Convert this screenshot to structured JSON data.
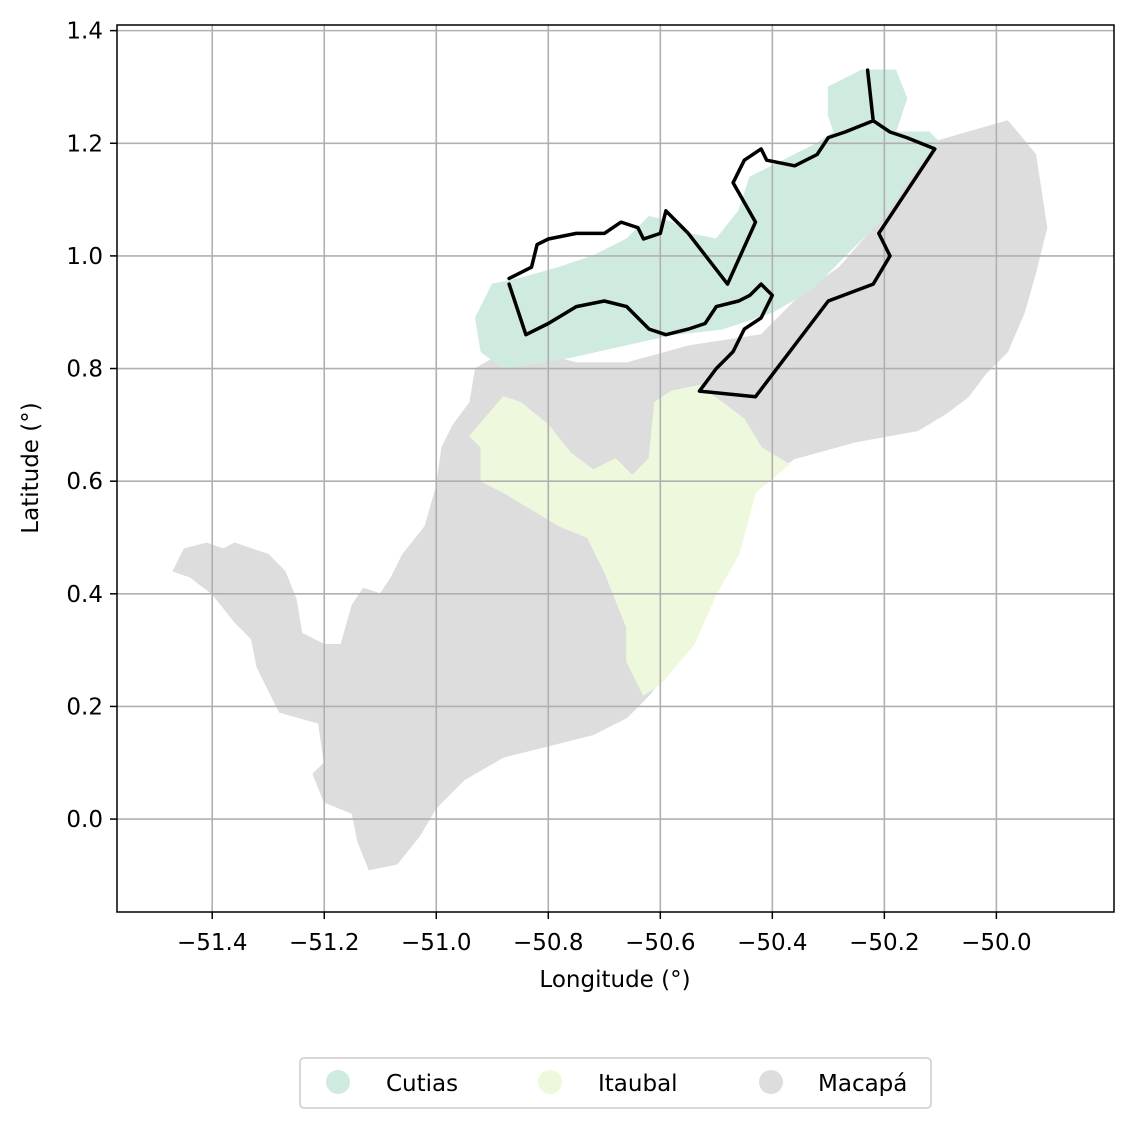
{
  "chart_data": {
    "type": "map",
    "title": "",
    "xlabel": "Longitude (°)",
    "ylabel": "Latitude (°)",
    "xlim": [
      -51.57,
      -49.79
    ],
    "ylim": [
      -0.165,
      1.41
    ],
    "xticks": [
      -51.4,
      -51.2,
      -51.0,
      -50.8,
      -50.6,
      -50.4,
      -50.2,
      -50.0
    ],
    "xtick_labels": [
      "−51.4",
      "−51.2",
      "−51.0",
      "−50.8",
      "−50.6",
      "−50.4",
      "−50.2",
      "−50.0"
    ],
    "yticks": [
      0.0,
      0.2,
      0.4,
      0.6,
      0.8,
      1.0,
      1.2,
      1.4
    ],
    "ytick_labels": [
      "0.0",
      "0.2",
      "0.4",
      "0.6",
      "0.8",
      "1.0",
      "1.2",
      "1.4"
    ],
    "grid": true,
    "legend_position": "bottom-center",
    "regions": [
      {
        "name": "Macapá",
        "color": "#dddddd",
        "polygon": [
          [
            -51.12,
            -0.09
          ],
          [
            -51.14,
            -0.04
          ],
          [
            -51.15,
            0.01
          ],
          [
            -51.2,
            0.03
          ],
          [
            -51.22,
            0.08
          ],
          [
            -51.2,
            0.1
          ],
          [
            -51.21,
            0.17
          ],
          [
            -51.28,
            0.19
          ],
          [
            -51.32,
            0.27
          ],
          [
            -51.33,
            0.32
          ],
          [
            -51.36,
            0.35
          ],
          [
            -51.4,
            0.4
          ],
          [
            -51.44,
            0.43
          ],
          [
            -51.47,
            0.44
          ],
          [
            -51.45,
            0.48
          ],
          [
            -51.41,
            0.49
          ],
          [
            -51.38,
            0.48
          ],
          [
            -51.36,
            0.49
          ],
          [
            -51.3,
            0.47
          ],
          [
            -51.27,
            0.44
          ],
          [
            -51.25,
            0.39
          ],
          [
            -51.24,
            0.33
          ],
          [
            -51.2,
            0.31
          ],
          [
            -51.17,
            0.31
          ],
          [
            -51.15,
            0.38
          ],
          [
            -51.13,
            0.41
          ],
          [
            -51.1,
            0.4
          ],
          [
            -51.08,
            0.43
          ],
          [
            -51.06,
            0.47
          ],
          [
            -51.02,
            0.52
          ],
          [
            -51.0,
            0.59
          ],
          [
            -50.99,
            0.66
          ],
          [
            -50.97,
            0.7
          ],
          [
            -50.94,
            0.74
          ],
          [
            -50.93,
            0.8
          ],
          [
            -50.86,
            0.84
          ],
          [
            -50.75,
            0.81
          ],
          [
            -50.66,
            0.81
          ],
          [
            -50.55,
            0.84
          ],
          [
            -50.42,
            0.86
          ],
          [
            -50.35,
            0.93
          ],
          [
            -50.28,
            0.98
          ],
          [
            -50.21,
            1.06
          ],
          [
            -50.18,
            1.17
          ],
          [
            -50.12,
            1.2
          ],
          [
            -50.05,
            1.22
          ],
          [
            -49.98,
            1.24
          ],
          [
            -49.93,
            1.18
          ],
          [
            -49.91,
            1.05
          ],
          [
            -49.93,
            0.97
          ],
          [
            -49.95,
            0.9
          ],
          [
            -49.98,
            0.83
          ],
          [
            -50.02,
            0.79
          ],
          [
            -50.05,
            0.75
          ],
          [
            -50.09,
            0.72
          ],
          [
            -50.14,
            0.69
          ],
          [
            -50.25,
            0.67
          ],
          [
            -50.36,
            0.64
          ],
          [
            -50.42,
            0.6
          ],
          [
            -50.45,
            0.55
          ],
          [
            -50.48,
            0.46
          ],
          [
            -50.52,
            0.4
          ],
          [
            -50.55,
            0.33
          ],
          [
            -50.58,
            0.27
          ],
          [
            -50.62,
            0.22
          ],
          [
            -50.66,
            0.18
          ],
          [
            -50.72,
            0.15
          ],
          [
            -50.8,
            0.13
          ],
          [
            -50.88,
            0.11
          ],
          [
            -50.95,
            0.07
          ],
          [
            -51.0,
            0.02
          ],
          [
            -51.03,
            -0.03
          ],
          [
            -51.07,
            -0.08
          ]
        ]
      },
      {
        "name": "Itaubal",
        "color": "#eef8dc",
        "polygon": [
          [
            -50.94,
            0.68
          ],
          [
            -50.88,
            0.75
          ],
          [
            -50.85,
            0.74
          ],
          [
            -50.8,
            0.7
          ],
          [
            -50.76,
            0.65
          ],
          [
            -50.72,
            0.62
          ],
          [
            -50.68,
            0.64
          ],
          [
            -50.65,
            0.61
          ],
          [
            -50.62,
            0.64
          ],
          [
            -50.61,
            0.74
          ],
          [
            -50.58,
            0.76
          ],
          [
            -50.53,
            0.77
          ],
          [
            -50.45,
            0.71
          ],
          [
            -50.42,
            0.66
          ],
          [
            -50.37,
            0.63
          ],
          [
            -50.43,
            0.58
          ],
          [
            -50.46,
            0.47
          ],
          [
            -50.5,
            0.4
          ],
          [
            -50.54,
            0.31
          ],
          [
            -50.6,
            0.24
          ],
          [
            -50.63,
            0.22
          ],
          [
            -50.66,
            0.28
          ],
          [
            -50.66,
            0.34
          ],
          [
            -50.68,
            0.39
          ],
          [
            -50.7,
            0.44
          ],
          [
            -50.73,
            0.5
          ],
          [
            -50.78,
            0.52
          ],
          [
            -50.83,
            0.55
          ],
          [
            -50.88,
            0.58
          ],
          [
            -50.92,
            0.6
          ],
          [
            -50.92,
            0.66
          ]
        ]
      },
      {
        "name": "Cutias",
        "color": "#cfeade",
        "polygon": [
          [
            -50.92,
            0.83
          ],
          [
            -50.88,
            0.8
          ],
          [
            -50.76,
            0.82
          ],
          [
            -50.67,
            0.84
          ],
          [
            -50.58,
            0.86
          ],
          [
            -50.49,
            0.87
          ],
          [
            -50.4,
            0.9
          ],
          [
            -50.33,
            0.94
          ],
          [
            -50.27,
            1.0
          ],
          [
            -50.2,
            1.07
          ],
          [
            -50.14,
            1.16
          ],
          [
            -50.1,
            1.2
          ],
          [
            -50.12,
            1.22
          ],
          [
            -50.18,
            1.22
          ],
          [
            -50.16,
            1.28
          ],
          [
            -50.18,
            1.33
          ],
          [
            -50.24,
            1.33
          ],
          [
            -50.3,
            1.3
          ],
          [
            -50.3,
            1.25
          ],
          [
            -50.29,
            1.22
          ],
          [
            -50.32,
            1.2
          ],
          [
            -50.38,
            1.17
          ],
          [
            -50.44,
            1.14
          ],
          [
            -50.46,
            1.08
          ],
          [
            -50.5,
            1.03
          ],
          [
            -50.55,
            1.04
          ],
          [
            -50.58,
            1.06
          ],
          [
            -50.62,
            1.07
          ],
          [
            -50.66,
            1.03
          ],
          [
            -50.72,
            1.0
          ],
          [
            -50.78,
            0.98
          ],
          [
            -50.85,
            0.96
          ],
          [
            -50.9,
            0.95
          ],
          [
            -50.93,
            0.89
          ]
        ]
      }
    ],
    "boundaries": [
      {
        "name": "protected-area-outline-1",
        "color": "#000000",
        "polyline": [
          [
            -50.87,
            0.95
          ],
          [
            -50.84,
            0.86
          ],
          [
            -50.8,
            0.88
          ],
          [
            -50.75,
            0.91
          ],
          [
            -50.7,
            0.92
          ],
          [
            -50.66,
            0.91
          ],
          [
            -50.64,
            0.89
          ],
          [
            -50.62,
            0.87
          ],
          [
            -50.59,
            0.86
          ],
          [
            -50.55,
            0.87
          ],
          [
            -50.52,
            0.88
          ],
          [
            -50.5,
            0.91
          ],
          [
            -50.46,
            0.92
          ],
          [
            -50.44,
            0.93
          ],
          [
            -50.42,
            0.95
          ],
          [
            -50.4,
            0.93
          ],
          [
            -50.42,
            0.89
          ],
          [
            -50.45,
            0.87
          ],
          [
            -50.47,
            0.83
          ],
          [
            -50.48,
            0.82
          ],
          [
            -50.5,
            0.8
          ],
          [
            -50.53,
            0.76
          ],
          [
            -50.43,
            0.75
          ],
          [
            -50.3,
            0.92
          ],
          [
            -50.22,
            0.95
          ],
          [
            -50.19,
            1.0
          ],
          [
            -50.21,
            1.04
          ],
          [
            -50.11,
            1.19
          ],
          [
            -50.16,
            1.21
          ],
          [
            -50.19,
            1.22
          ],
          [
            -50.22,
            1.24
          ],
          [
            -50.23,
            1.33
          ],
          [
            -50.22,
            1.24
          ],
          [
            -50.27,
            1.22
          ],
          [
            -50.3,
            1.21
          ],
          [
            -50.32,
            1.18
          ],
          [
            -50.36,
            1.16
          ],
          [
            -50.41,
            1.17
          ],
          [
            -50.42,
            1.19
          ],
          [
            -50.45,
            1.17
          ],
          [
            -50.47,
            1.13
          ],
          [
            -50.43,
            1.06
          ],
          [
            -50.48,
            0.95
          ],
          [
            -50.55,
            1.04
          ],
          [
            -50.58,
            1.07
          ],
          [
            -50.59,
            1.08
          ],
          [
            -50.6,
            1.04
          ],
          [
            -50.63,
            1.03
          ],
          [
            -50.64,
            1.05
          ],
          [
            -50.67,
            1.06
          ],
          [
            -50.7,
            1.04
          ],
          [
            -50.75,
            1.04
          ],
          [
            -50.8,
            1.03
          ],
          [
            -50.82,
            1.02
          ],
          [
            -50.83,
            0.98
          ],
          [
            -50.87,
            0.96
          ]
        ]
      }
    ],
    "legend": [
      {
        "label": "Cutias",
        "color": "#cfeade"
      },
      {
        "label": "Itaubal",
        "color": "#eef8dc"
      },
      {
        "label": "Macapá",
        "color": "#dddddd"
      }
    ]
  }
}
